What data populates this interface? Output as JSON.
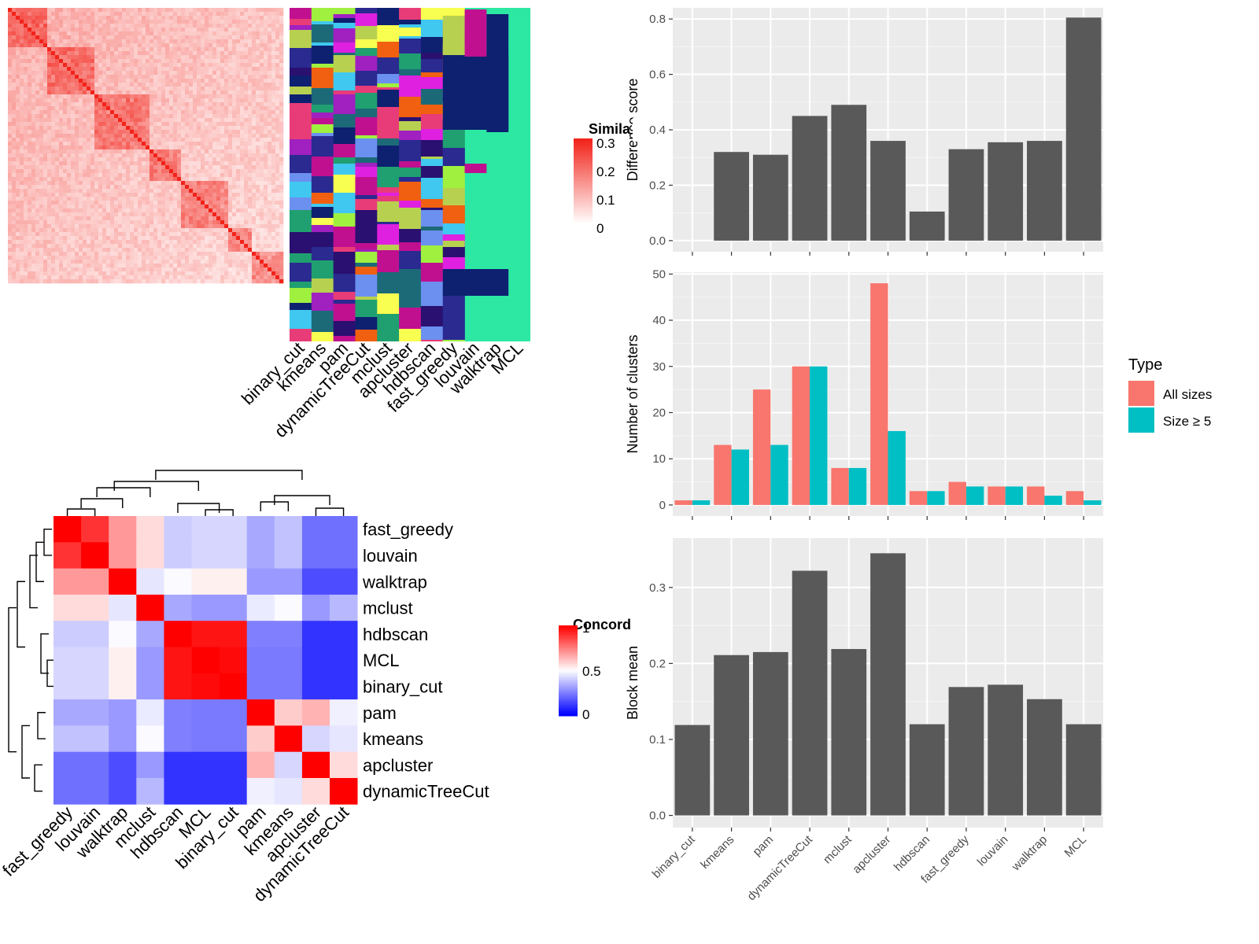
{
  "similarity_heatmap": {
    "legend_title": "Simila",
    "legend_ticks": [
      "0.3",
      "0.2",
      "0.1",
      "0"
    ],
    "method_columns": [
      "binary_cut",
      "kmeans",
      "pam",
      "dynamicTreeCut",
      "mclust",
      "apcluster",
      "hdbscan",
      "fast_greedy",
      "louvain",
      "walktrap",
      "MCL"
    ]
  },
  "concordance_heatmap": {
    "legend_title": "Concord",
    "legend_ticks": [
      "1",
      "0.5",
      "0"
    ],
    "row_labels": [
      "fast_greedy",
      "louvain",
      "walktrap",
      "mclust",
      "hdbscan",
      "MCL",
      "binary_cut",
      "pam",
      "kmeans",
      "apcluster",
      "dynamicTreeCut"
    ],
    "col_labels": [
      "fast_greedy",
      "louvain",
      "walktrap",
      "mclust",
      "hdbscan",
      "MCL",
      "binary_cut",
      "pam",
      "kmeans",
      "apcluster",
      "dynamicTreeCut"
    ]
  },
  "chart_data": [
    {
      "type": "heatmap",
      "rows": [
        "fast_greedy",
        "louvain",
        "walktrap",
        "mclust",
        "hdbscan",
        "MCL",
        "binary_cut",
        "pam",
        "kmeans",
        "apcluster",
        "dynamicTreeCut"
      ],
      "cols": [
        "fast_greedy",
        "louvain",
        "walktrap",
        "mclust",
        "hdbscan",
        "MCL",
        "binary_cut",
        "pam",
        "kmeans",
        "apcluster",
        "dynamicTreeCut"
      ],
      "legend_title": "Concord",
      "range": [
        0,
        1
      ],
      "values": [
        [
          1.0,
          0.9,
          0.7,
          0.57,
          0.4,
          0.42,
          0.42,
          0.33,
          0.38,
          0.22,
          0.22
        ],
        [
          0.9,
          1.0,
          0.7,
          0.57,
          0.4,
          0.42,
          0.42,
          0.33,
          0.38,
          0.22,
          0.22
        ],
        [
          0.7,
          0.7,
          1.0,
          0.45,
          0.49,
          0.53,
          0.53,
          0.3,
          0.3,
          0.15,
          0.15
        ],
        [
          0.57,
          0.57,
          0.45,
          1.0,
          0.33,
          0.3,
          0.3,
          0.46,
          0.49,
          0.3,
          0.36
        ],
        [
          0.4,
          0.4,
          0.49,
          0.33,
          1.0,
          0.96,
          0.96,
          0.25,
          0.25,
          0.1,
          0.1
        ],
        [
          0.42,
          0.42,
          0.53,
          0.3,
          0.96,
          1.0,
          0.98,
          0.24,
          0.24,
          0.1,
          0.1
        ],
        [
          0.42,
          0.42,
          0.53,
          0.3,
          0.96,
          0.98,
          1.0,
          0.24,
          0.24,
          0.1,
          0.1
        ],
        [
          0.33,
          0.33,
          0.3,
          0.46,
          0.25,
          0.24,
          0.24,
          1.0,
          0.6,
          0.65,
          0.47
        ],
        [
          0.38,
          0.38,
          0.3,
          0.49,
          0.25,
          0.24,
          0.24,
          0.6,
          1.0,
          0.42,
          0.45
        ],
        [
          0.22,
          0.22,
          0.15,
          0.3,
          0.1,
          0.1,
          0.1,
          0.65,
          0.42,
          1.0,
          0.57
        ],
        [
          0.22,
          0.22,
          0.15,
          0.36,
          0.1,
          0.1,
          0.1,
          0.47,
          0.45,
          0.57,
          1.0
        ]
      ]
    },
    {
      "type": "bar",
      "categories": [
        "binary_cut",
        "kmeans",
        "pam",
        "dynamicTreeCut",
        "mclust",
        "apcluster",
        "hdbscan",
        "fast_greedy",
        "louvain",
        "walktrap",
        "MCL"
      ],
      "values": [
        0.0,
        0.32,
        0.31,
        0.45,
        0.49,
        0.36,
        0.105,
        0.33,
        0.355,
        0.36,
        0.805
      ],
      "ylabel": "Difference score",
      "yticks": [
        "0.0",
        "0.2",
        "0.4",
        "0.6",
        "0.8"
      ],
      "ylim": [
        -0.04,
        0.84
      ]
    },
    {
      "type": "bar",
      "categories": [
        "binary_cut",
        "kmeans",
        "pam",
        "dynamicTreeCut",
        "mclust",
        "apcluster",
        "hdbscan",
        "fast_greedy",
        "louvain",
        "walktrap",
        "MCL"
      ],
      "series": [
        {
          "name": "All sizes",
          "values": [
            1,
            13,
            25,
            30,
            8,
            48,
            3,
            5,
            4,
            4,
            3
          ],
          "color": "#F8766D"
        },
        {
          "name": "Size ≥ 5",
          "values": [
            1,
            12,
            13,
            30,
            8,
            16,
            3,
            4,
            4,
            2,
            1
          ],
          "color": "#00BFC4"
        }
      ],
      "ylabel": "Number of clusters",
      "yticks": [
        "0",
        "10",
        "20",
        "30",
        "40",
        "50"
      ],
      "ylim": [
        -2.4,
        50.4
      ],
      "legend_title": "Type",
      "legend_position": "right"
    },
    {
      "type": "bar",
      "categories": [
        "binary_cut",
        "kmeans",
        "pam",
        "dynamicTreeCut",
        "mclust",
        "apcluster",
        "hdbscan",
        "fast_greedy",
        "louvain",
        "walktrap",
        "MCL"
      ],
      "values": [
        0.119,
        0.211,
        0.215,
        0.322,
        0.219,
        0.345,
        0.12,
        0.169,
        0.172,
        0.153,
        0.12
      ],
      "ylabel": "Block mean",
      "yticks": [
        "0.0",
        "0.1",
        "0.2",
        "0.3"
      ],
      "ylim": [
        -0.016,
        0.365
      ]
    }
  ],
  "colors": {
    "bar": "#595959",
    "panel_bg": "#EBEBEB",
    "grid": "#FFFFFF",
    "heat_high": "#FF0000",
    "heat_low": "#0000FF",
    "background_cluster": "#2CE8A2"
  }
}
